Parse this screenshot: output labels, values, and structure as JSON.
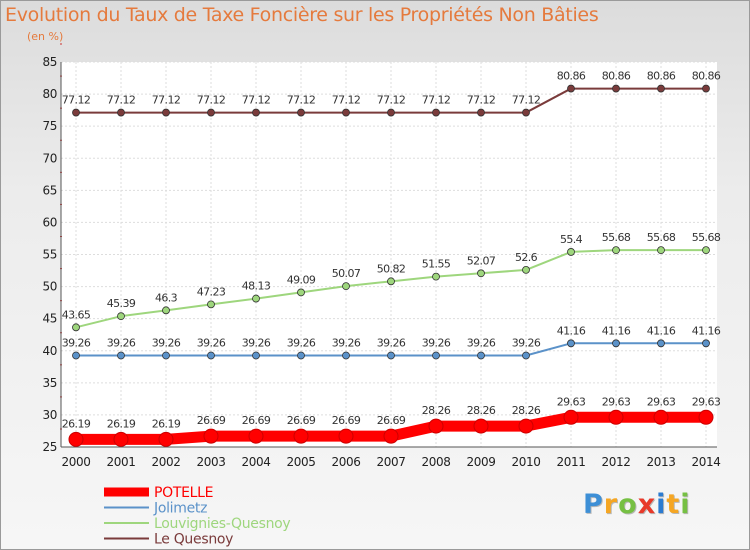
{
  "chart_data": {
    "type": "line",
    "title": "Evolution du Taux de Taxe Foncière sur les Propriétés Non Bâties",
    "ylabel": "(en %)",
    "xlabel": "",
    "x": [
      "2000",
      "2001",
      "2002",
      "2003",
      "2004",
      "2005",
      "2006",
      "2007",
      "2008",
      "2009",
      "2010",
      "2011",
      "2012",
      "2013",
      "2014"
    ],
    "ylim": [
      25,
      85
    ],
    "yticks": [
      25,
      30,
      35,
      40,
      45,
      50,
      55,
      60,
      65,
      70,
      75,
      80,
      85
    ],
    "grid": true,
    "legend_position": "bottom-left",
    "series": [
      {
        "name": "POTELLE",
        "color": "#ff0000",
        "thick": true,
        "values": [
          26.19,
          26.19,
          26.19,
          26.69,
          26.69,
          26.69,
          26.69,
          26.69,
          28.26,
          28.26,
          28.26,
          29.63,
          29.63,
          29.63,
          29.63
        ],
        "labels": [
          "26.19",
          "26.19",
          "26.19",
          "26.69",
          "26.69",
          "26.69",
          "26.69",
          "26.69",
          "28.26",
          "28.26",
          "28.26",
          "29.63",
          "29.63",
          "29.63",
          "29.63"
        ]
      },
      {
        "name": "Jolimetz",
        "color": "#5b92c9",
        "thick": false,
        "values": [
          39.26,
          39.26,
          39.26,
          39.26,
          39.26,
          39.26,
          39.26,
          39.26,
          39.26,
          39.26,
          39.26,
          41.16,
          41.16,
          41.16,
          41.16
        ],
        "labels": [
          "39.26",
          "39.26",
          "39.26",
          "39.26",
          "39.26",
          "39.26",
          "39.26",
          "39.26",
          "39.26",
          "39.26",
          "39.26",
          "41.16",
          "41.16",
          "41.16",
          "41.16"
        ]
      },
      {
        "name": "Louvignies-Quesnoy",
        "color": "#9ed67d",
        "thick": false,
        "values": [
          43.65,
          45.39,
          46.3,
          47.23,
          48.13,
          49.09,
          50.07,
          50.82,
          51.55,
          52.07,
          52.6,
          55.4,
          55.68,
          55.68,
          55.68
        ],
        "labels": [
          "43.65",
          "45.39",
          "46.3",
          "47.23",
          "48.13",
          "49.09",
          "50.07",
          "50.82",
          "51.55",
          "52.07",
          "52.6",
          "55.4",
          "55.68",
          "55.68",
          "55.68"
        ]
      },
      {
        "name": "Le Quesnoy",
        "color": "#7a3b3b",
        "thick": false,
        "values": [
          77.12,
          77.12,
          77.12,
          77.12,
          77.12,
          77.12,
          77.12,
          77.12,
          77.12,
          77.12,
          77.12,
          80.86,
          80.86,
          80.86,
          80.86
        ],
        "labels": [
          "77.12",
          "77.12",
          "77.12",
          "77.12",
          "77.12",
          "77.12",
          "77.12",
          "77.12",
          "77.12",
          "77.12",
          "77.12",
          "80.86",
          "80.86",
          "80.86",
          "80.86"
        ]
      }
    ]
  },
  "logo": {
    "letters": [
      "P",
      "r",
      "o",
      "x",
      "i",
      "t",
      "i"
    ],
    "colors": [
      "#3d8fd6",
      "#f5a623",
      "#76c043",
      "#e8392a",
      "#2b7bd1",
      "#f5a623",
      "#76c043"
    ]
  }
}
